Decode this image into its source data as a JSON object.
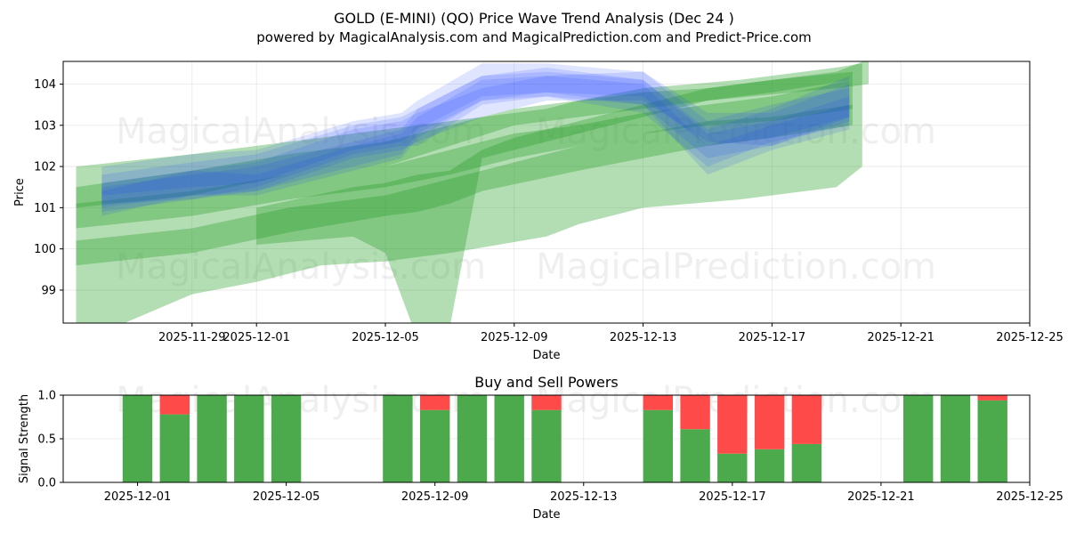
{
  "chart_data": [
    {
      "type": "area",
      "title": "GOLD (E-MINI) (QO) Price Wave Trend Analysis (Dec 24 )",
      "subtitle": "powered by MagicalAnalysis.com and MagicalPrediction.com and Predict-Price.com",
      "xlabel": "Date",
      "ylabel": "Price",
      "xlim": [
        "2025-11-25",
        "2025-12-25"
      ],
      "ylim": [
        98.2,
        104.55
      ],
      "x_ticks": [
        "2025-11-29",
        "2025-12-01",
        "2025-12-05",
        "2025-12-09",
        "2025-12-13",
        "2025-12-17",
        "2025-12-21",
        "2025-12-25"
      ],
      "y_ticks": [
        99,
        100,
        101,
        102,
        103,
        104
      ],
      "grid": true,
      "watermarks": [
        "MagicalAnalysis.com",
        "MagicalPrediction.com"
      ],
      "series": [
        {
          "name": "green-band-wide",
          "color": "#2ca02c",
          "x": [
            0.4,
            4,
            6,
            8,
            10,
            11,
            12,
            15,
            16,
            18,
            21,
            24,
            24.8
          ],
          "lower": [
            97.7,
            98.9,
            99.2,
            99.6,
            99.7,
            99.8,
            99.9,
            100.3,
            100.6,
            101.0,
            101.2,
            101.5,
            102.0
          ],
          "upper": [
            102.0,
            102.3,
            102.5,
            102.7,
            102.9,
            103.0,
            103.1,
            103.4,
            103.6,
            103.9,
            104.1,
            104.4,
            104.5
          ]
        },
        {
          "name": "green-band-dip",
          "color": "#2ca02c",
          "x": [
            6,
            9,
            10,
            11,
            12,
            13,
            14,
            16,
            18,
            20,
            24,
            25
          ],
          "lower": [
            100.1,
            100.3,
            99.9,
            97.8,
            98.1,
            102.2,
            102.4,
            102.8,
            103.2,
            103.6,
            103.9,
            104.0
          ],
          "upper": [
            101.0,
            101.5,
            101.6,
            101.8,
            101.9,
            102.4,
            102.7,
            103.1,
            103.5,
            103.9,
            104.3,
            104.6
          ]
        },
        {
          "name": "green-band-upper",
          "color": "#2ca02c",
          "x": [
            0.4,
            4,
            7,
            10,
            12,
            14,
            16,
            18,
            20,
            22,
            24.5
          ],
          "lower": [
            100.5,
            100.8,
            101.2,
            101.5,
            101.8,
            102.2,
            102.5,
            102.8,
            103.0,
            103.1,
            103.4
          ],
          "upper": [
            101.1,
            101.4,
            101.8,
            102.0,
            102.4,
            102.8,
            103.0,
            103.3,
            103.5,
            103.7,
            104.1
          ]
        },
        {
          "name": "green-band-mid",
          "color": "#2ca02c",
          "x": [
            0.4,
            4,
            7,
            10,
            12,
            14,
            16,
            18,
            20,
            22,
            24.5
          ],
          "lower": [
            101.0,
            101.3,
            101.8,
            102.0,
            102.5,
            103.0,
            103.2,
            103.4,
            103.6,
            103.8,
            104.1
          ],
          "upper": [
            101.5,
            101.9,
            102.3,
            102.6,
            103.0,
            103.4,
            103.6,
            103.8,
            103.9,
            104.1,
            104.3
          ]
        },
        {
          "name": "green-band-lower",
          "color": "#2ca02c",
          "x": [
            0.4,
            4,
            7,
            10,
            11,
            12,
            13,
            16,
            18,
            20,
            22,
            24.5
          ],
          "lower": [
            99.6,
            99.9,
            100.4,
            100.8,
            100.9,
            101.1,
            101.4,
            101.9,
            102.2,
            102.5,
            102.7,
            103.0
          ],
          "upper": [
            100.2,
            100.5,
            101.0,
            101.3,
            101.5,
            101.7,
            101.9,
            102.5,
            102.8,
            103.1,
            103.2,
            103.5
          ]
        },
        {
          "name": "blue-band-1",
          "color": "#1f3fff",
          "x": [
            1.2,
            4,
            6,
            9,
            10.5,
            11,
            13,
            15,
            18,
            20,
            22,
            24.4
          ],
          "lower": [
            100.9,
            101.2,
            101.4,
            102.2,
            102.4,
            102.6,
            103.2,
            103.6,
            103.6,
            102.6,
            102.5,
            103.2
          ],
          "upper": [
            101.6,
            101.9,
            102.1,
            102.9,
            103.1,
            103.3,
            103.9,
            104.2,
            104.3,
            103.3,
            103.3,
            104.0
          ]
        },
        {
          "name": "blue-band-2",
          "color": "#1f3fff",
          "x": [
            1.2,
            4,
            6,
            9,
            10.5,
            11,
            13,
            15,
            18,
            20,
            22,
            24.4
          ],
          "lower": [
            101.0,
            101.3,
            101.4,
            102.0,
            102.3,
            102.8,
            103.6,
            103.8,
            103.5,
            102.2,
            102.5,
            103.1
          ],
          "upper": [
            101.5,
            101.8,
            102.0,
            102.6,
            102.9,
            103.4,
            104.2,
            104.3,
            104.1,
            102.8,
            103.1,
            103.7
          ]
        },
        {
          "name": "blue-band-3",
          "color": "#1f3fff",
          "x": [
            1.2,
            4,
            6,
            9,
            10.5,
            11,
            13,
            15,
            18,
            20,
            22,
            24.4
          ],
          "lower": [
            101.1,
            101.2,
            101.5,
            102.3,
            102.5,
            102.5,
            103.5,
            103.7,
            103.3,
            102.0,
            102.6,
            103.0
          ],
          "upper": [
            101.8,
            102.1,
            102.3,
            103.0,
            103.2,
            103.4,
            104.2,
            104.4,
            104.1,
            102.9,
            103.4,
            104.2
          ]
        },
        {
          "name": "blue-band-4",
          "color": "#1f3fff",
          "x": [
            1.2,
            4,
            6,
            9,
            10.5,
            11,
            13,
            15,
            18,
            20,
            22,
            24.4
          ],
          "lower": [
            100.8,
            101.3,
            101.3,
            101.9,
            102.2,
            102.7,
            103.6,
            103.7,
            103.5,
            101.8,
            102.4,
            102.9
          ],
          "upper": [
            101.4,
            101.9,
            101.8,
            102.5,
            102.8,
            103.2,
            104.1,
            104.2,
            104.0,
            102.5,
            103.0,
            103.5
          ]
        },
        {
          "name": "blue-band-5",
          "color": "#1f3fff",
          "x": [
            1.2,
            4,
            6,
            9,
            10.5,
            11,
            13,
            15,
            18,
            20,
            22,
            24.4
          ],
          "lower": [
            101.3,
            101.5,
            101.6,
            102.4,
            102.6,
            102.9,
            103.7,
            103.8,
            103.7,
            102.5,
            102.7,
            103.2
          ],
          "upper": [
            102.0,
            102.3,
            102.4,
            103.1,
            103.3,
            103.6,
            104.5,
            104.5,
            104.3,
            103.1,
            103.5,
            103.9
          ]
        }
      ]
    },
    {
      "type": "bar",
      "stacked": true,
      "title": "Buy and Sell Powers",
      "xlabel": "Date",
      "ylabel": "Signal Strength",
      "xlim": [
        "2025-11-29",
        "2025-12-25"
      ],
      "ylim": [
        0,
        1
      ],
      "y_ticks": [
        "0.0",
        "0.5",
        "1.0"
      ],
      "x_ticks": [
        "2025-12-01",
        "2025-12-05",
        "2025-12-09",
        "2025-12-13",
        "2025-12-17",
        "2025-12-21",
        "2025-12-25"
      ],
      "grid": true,
      "categories": [
        "2025-12-01",
        "2025-12-02",
        "2025-12-03",
        "2025-12-04",
        "2025-12-05",
        "2025-12-08",
        "2025-12-09",
        "2025-12-10",
        "2025-12-11",
        "2025-12-12",
        "2025-12-15",
        "2025-12-16",
        "2025-12-17",
        "2025-12-18",
        "2025-12-19",
        "2025-12-22",
        "2025-12-23",
        "2025-12-24"
      ],
      "series": [
        {
          "name": "Buy",
          "color": "#4caa4c",
          "values": [
            1.0,
            0.78,
            1.0,
            1.0,
            1.0,
            1.0,
            0.83,
            1.0,
            1.0,
            0.83,
            0.83,
            0.61,
            0.33,
            0.38,
            0.44,
            1.0,
            1.0,
            0.94
          ]
        },
        {
          "name": "Sell",
          "color": "#ff4a4a",
          "values": [
            0.0,
            0.22,
            0.0,
            0.0,
            0.0,
            0.0,
            0.17,
            0.0,
            0.0,
            0.17,
            0.17,
            0.39,
            0.67,
            0.62,
            0.56,
            0.0,
            0.0,
            0.06
          ]
        }
      ]
    }
  ]
}
